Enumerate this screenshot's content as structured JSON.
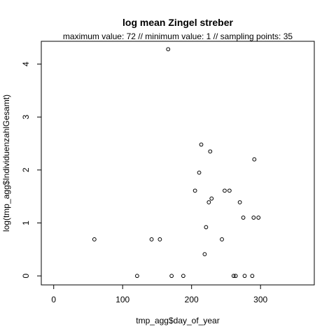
{
  "chart_data": {
    "type": "scatter",
    "title": "log mean Zingel streber",
    "subtitle": "maximum value: 72  //  minimum value: 1  // sampling points: 35",
    "xlabel": "tmp_agg$day_of_year",
    "ylabel": "log(tmp_agg$IndividuenzahlGesamt)",
    "xlim": [
      -18,
      378
    ],
    "ylim": [
      -0.17,
      4.43
    ],
    "xticks": [
      0,
      100,
      200,
      300
    ],
    "yticks": [
      0,
      1,
      2,
      3,
      4
    ],
    "grid": false,
    "marker": "open-circle",
    "points": [
      {
        "x": 59,
        "y": 0.69
      },
      {
        "x": 121,
        "y": 0.0
      },
      {
        "x": 142,
        "y": 0.69
      },
      {
        "x": 154,
        "y": 0.69
      },
      {
        "x": 166,
        "y": 4.28
      },
      {
        "x": 171,
        "y": 0.0
      },
      {
        "x": 188,
        "y": 0.0
      },
      {
        "x": 205,
        "y": 1.61
      },
      {
        "x": 211,
        "y": 1.95
      },
      {
        "x": 214,
        "y": 2.48
      },
      {
        "x": 219,
        "y": 0.41
      },
      {
        "x": 221,
        "y": 0.92
      },
      {
        "x": 225,
        "y": 1.39
      },
      {
        "x": 227,
        "y": 2.35
      },
      {
        "x": 229,
        "y": 1.46
      },
      {
        "x": 244,
        "y": 0.69
      },
      {
        "x": 248,
        "y": 1.61
      },
      {
        "x": 255,
        "y": 1.61
      },
      {
        "x": 261,
        "y": 0.0
      },
      {
        "x": 264,
        "y": 0.0
      },
      {
        "x": 270,
        "y": 1.39
      },
      {
        "x": 275,
        "y": 1.1
      },
      {
        "x": 277,
        "y": 0.0
      },
      {
        "x": 288,
        "y": 0.0
      },
      {
        "x": 290,
        "y": 1.1
      },
      {
        "x": 291,
        "y": 2.2
      },
      {
        "x": 297,
        "y": 1.1
      }
    ]
  }
}
